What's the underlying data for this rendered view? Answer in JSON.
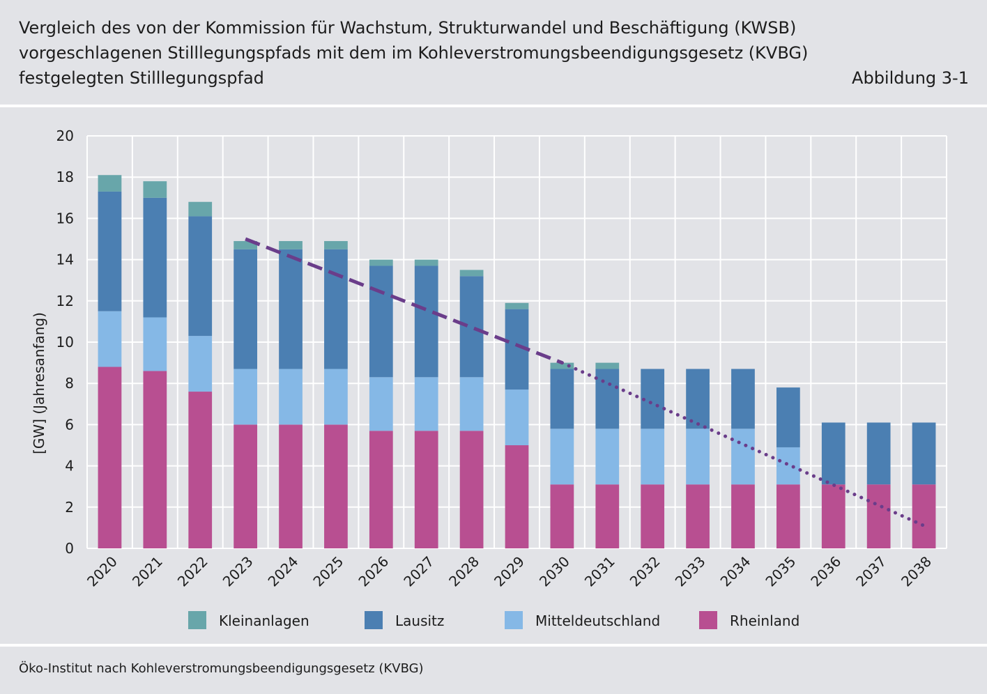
{
  "header": {
    "title_lines": [
      "Vergleich des von der Kommission für Wachstum, Strukturwandel und Beschäftigung (KWSB)",
      "vorgeschlagenen Stilllegungspfads mit dem im Kohleverstromungsbeendigungsgesetz (KVBG)",
      "festgelegten Stilllegungspfad"
    ],
    "figure_label": "Abbildung 3-1"
  },
  "footer": {
    "source": "Öko-Institut nach Kohleverstromungsbeendigungsgesetz (KVBG)"
  },
  "colors": {
    "Kleinanlagen": "#68a6aa",
    "Lausitz": "#4b7fb2",
    "Mitteldeutschland": "#85b8e6",
    "Rheinland": "#b84f91",
    "KWSB_path": "#6a3d8a"
  },
  "chart_data": {
    "type": "bar",
    "stacked": true,
    "title": "Vergleich des von der Kommission für Wachstum, Strukturwandel und Beschäftigung (KWSB) vorgeschlagenen Stilllegungspfads mit dem im Kohleverstromungsbeendigungsgesetz (KVBG) festgelegten Stilllegungspfad",
    "xlabel": "",
    "ylabel": "[GW] (Jahresanfang)",
    "ylim": [
      0,
      20
    ],
    "yticks": [
      0,
      2,
      4,
      6,
      8,
      10,
      12,
      14,
      16,
      18,
      20
    ],
    "grid": true,
    "legend_position": "bottom",
    "categories": [
      "2020",
      "2021",
      "2022",
      "2023",
      "2024",
      "2025",
      "2026",
      "2027",
      "2028",
      "2029",
      "2030",
      "2031",
      "2032",
      "2033",
      "2034",
      "2035",
      "2036",
      "2037",
      "2038"
    ],
    "series": [
      {
        "name": "Rheinland",
        "values": [
          8.8,
          8.6,
          7.6,
          6.0,
          6.0,
          6.0,
          5.7,
          5.7,
          5.7,
          5.0,
          3.1,
          3.1,
          3.1,
          3.1,
          3.1,
          3.1,
          3.1,
          3.1,
          3.1
        ]
      },
      {
        "name": "Mitteldeutschland",
        "values": [
          2.7,
          2.6,
          2.7,
          2.7,
          2.7,
          2.7,
          2.6,
          2.6,
          2.6,
          2.7,
          2.7,
          2.7,
          2.7,
          2.7,
          2.7,
          1.8,
          0,
          0,
          0
        ]
      },
      {
        "name": "Lausitz",
        "values": [
          5.8,
          5.8,
          5.8,
          5.8,
          5.8,
          5.8,
          5.4,
          5.4,
          4.9,
          3.9,
          2.9,
          2.9,
          2.9,
          2.9,
          2.9,
          2.9,
          3.0,
          3.0,
          3.0
        ]
      },
      {
        "name": "Kleinanlagen",
        "values": [
          0.8,
          0.8,
          0.7,
          0.4,
          0.4,
          0.4,
          0.3,
          0.3,
          0.3,
          0.3,
          0.3,
          0.3,
          0,
          0,
          0,
          0,
          0,
          0,
          0
        ]
      }
    ],
    "legend_order": [
      "Kleinanlagen",
      "Lausitz",
      "Mitteldeutschland",
      "Rheinland"
    ],
    "kwsb_path": {
      "name": "KWSB-Stilllegungspfad",
      "dashed_points": [
        {
          "x": "2023",
          "y": 15.0
        },
        {
          "x": "2030",
          "y": 9.0
        }
      ],
      "dotted_points": [
        {
          "x": "2030",
          "y": 9.0
        },
        {
          "x": "2038",
          "y": 1.1
        }
      ]
    }
  }
}
